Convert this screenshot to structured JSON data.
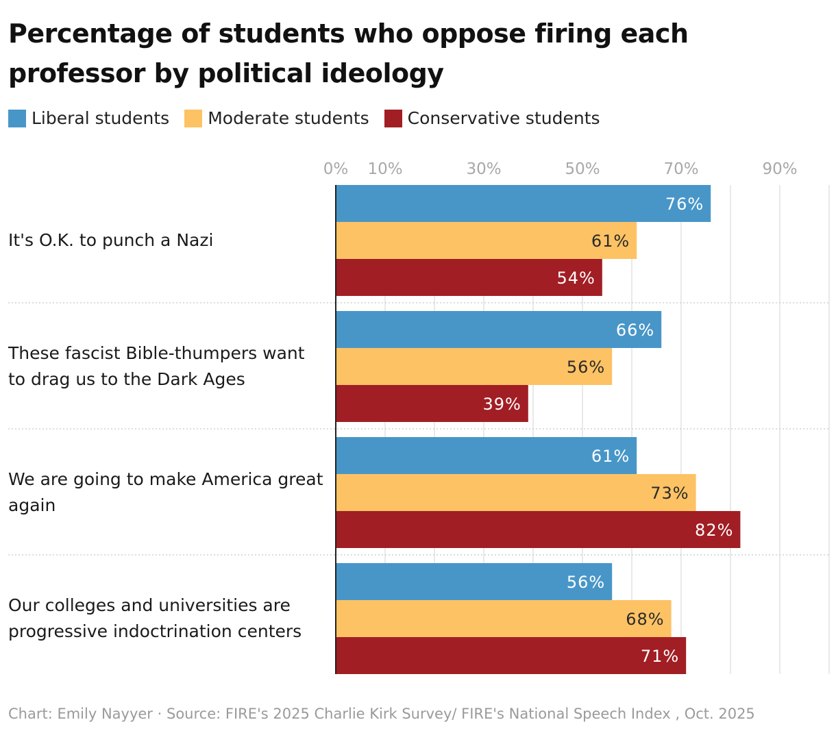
{
  "title": "Percentage of students who oppose firing each professor by political ideology",
  "footer": {
    "credit": "Chart: Emily Nayyer",
    "source": " · Source: FIRE's 2025 Charlie Kirk Survey/ FIRE's National Speech Index , Oct. 2025"
  },
  "legend": [
    {
      "label": "Liberal students",
      "color": "#4896C8"
    },
    {
      "label": "Moderate students",
      "color": "#FDC264"
    },
    {
      "label": "Conservative students",
      "color": "#A11E24"
    }
  ],
  "chart_data": {
    "type": "bar",
    "orientation": "horizontal",
    "title": "Percentage of students who oppose firing each professor by political ideology",
    "categories": [
      [
        "It's O.K. to punch a Nazi"
      ],
      [
        "These fascist Bible-thumpers want",
        "to drag us to the Dark Ages"
      ],
      [
        "We are going to make America great",
        "again"
      ],
      [
        "Our colleges and universities are",
        "progressive indoctrination centers"
      ]
    ],
    "series": [
      {
        "name": "Liberal students",
        "color": "#4896C8",
        "values": [
          76,
          66,
          61,
          56
        ],
        "labels": [
          "76%",
          "66%",
          "61%",
          "56%"
        ],
        "label_color": "#ffffff"
      },
      {
        "name": "Moderate students",
        "color": "#FDC264",
        "values": [
          61,
          56,
          73,
          68
        ],
        "labels": [
          "61%",
          "56%",
          "73%",
          "68%"
        ],
        "label_color": "#2a2a2a"
      },
      {
        "name": "Conservative students",
        "color": "#A11E24",
        "values": [
          54,
          39,
          82,
          71
        ],
        "labels": [
          "54%",
          "39%",
          "82%",
          "71%"
        ],
        "label_color": "#ffffff"
      }
    ],
    "xlim": [
      0,
      100
    ],
    "gridlines": [
      10,
      20,
      30,
      40,
      50,
      60,
      70,
      80,
      90,
      100
    ],
    "tick_labels": [
      {
        "value": 0,
        "label": "0%"
      },
      {
        "value": 10,
        "label": "10%"
      },
      {
        "value": 30,
        "label": "30%"
      },
      {
        "value": 50,
        "label": "50%"
      },
      {
        "value": 70,
        "label": "70%"
      },
      {
        "value": 90,
        "label": "90%"
      }
    ],
    "legend_position": "top-left",
    "grid": true
  }
}
